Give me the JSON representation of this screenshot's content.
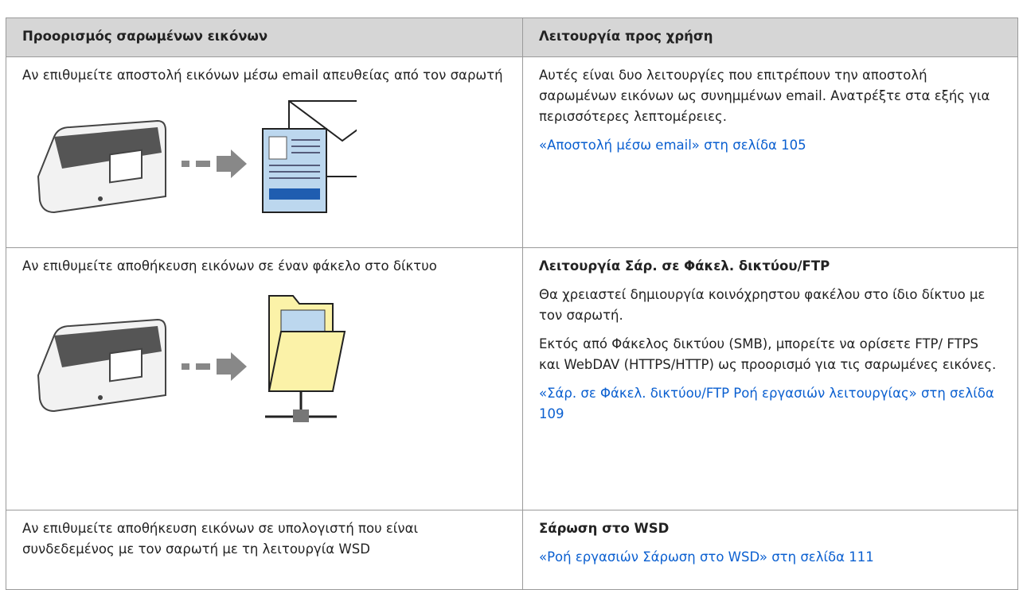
{
  "table": {
    "header": [
      "Προορισμός σαρωμένων εικόνων",
      "Λειτουργία προς χρήση"
    ],
    "rows": [
      {
        "destination": "Αν επιθυμείτε αποστολή εικόνων μέσω email απευθείας από τον σαρωτή",
        "paragraphs": [
          "Αυτές είναι δυο λειτουργίες που επιτρέπουν την αποστολή σαρωμένων εικόνων ως συνημμένων email. Ανατρέξτε στα εξής για περισσότερες λεπτομέρειες."
        ],
        "link": "«Αποστολή μέσω email» στη σελίδα 105"
      },
      {
        "destination": "Αν επιθυμείτε αποθήκευση εικόνων σε έναν φάκελο στο δίκτυο",
        "function": "Λειτουργία Σάρ. σε Φάκελ. δικτύου/FTP",
        "paragraphs": [
          "Θα χρειαστεί δημιουργία κοινόχρηστου φακέλου στο ίδιο δίκτυο με τον σαρωτή.",
          "Εκτός από Φάκελος δικτύου (SMB), μπορείτε να ορίσετε FTP/ FTPS και WebDAV (HTTPS/HTTP) ως προορισμό για τις σαρωμένες εικόνες."
        ],
        "link": "«Σάρ. σε Φάκελ. δικτύου/FTP Ροή εργασιών λειτουργίας» στη σελίδα 109"
      },
      {
        "destination": "Αν επιθυμείτε αποθήκευση εικόνων σε υπολογιστή που είναι συνδεδεμένος με τον σαρωτή με τη λειτουργία WSD",
        "function": "Σάρωση στο WSD",
        "link": "«Ροή εργασιών Σάρωση στο WSD» στη σελίδα 111"
      }
    ]
  }
}
